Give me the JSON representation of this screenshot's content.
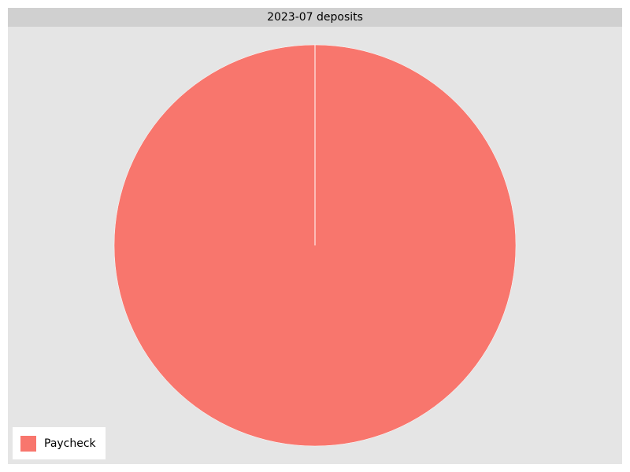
{
  "chart_data": {
    "type": "pie",
    "title": "2023-07 deposits",
    "categories": [
      "Paycheck"
    ],
    "values": [
      100
    ],
    "colors": [
      "#f8766d"
    ],
    "legend": "bottom-left",
    "background": "#e5e5e5",
    "title_bar_color": "#d0d0d0"
  }
}
